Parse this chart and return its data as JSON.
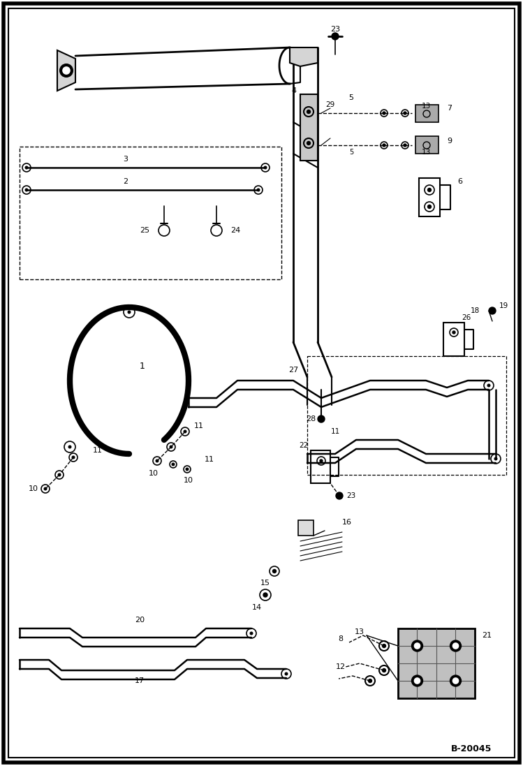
{
  "bg_color": "#ffffff",
  "line_color": "#000000",
  "border_code": "B-20045",
  "fig_width": 7.49,
  "fig_height": 10.97,
  "dpi": 100
}
